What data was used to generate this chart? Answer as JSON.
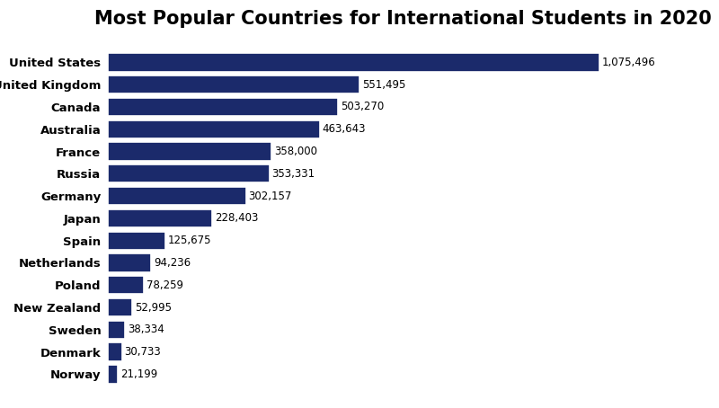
{
  "title": "Most Popular Countries for International Students in 2020",
  "countries": [
    "United States",
    "United Kingdom",
    "Canada",
    "Australia",
    "France",
    "Russia",
    "Germany",
    "Japan",
    "Spain",
    "Netherlands",
    "Poland",
    "New Zealand",
    "Sweden",
    "Denmark",
    "Norway"
  ],
  "values": [
    1075496,
    551495,
    503270,
    463643,
    358000,
    353331,
    302157,
    228403,
    125675,
    94236,
    78259,
    52995,
    38334,
    30733,
    21199
  ],
  "labels": [
    "1,075,496",
    "551,495",
    "503,270",
    "463,643",
    "358,000",
    "353,331",
    "302,157",
    "228,403",
    "125,675",
    "94,236",
    "78,259",
    "52,995",
    "38,334",
    "30,733",
    "21,199"
  ],
  "bar_color": "#1b2a6b",
  "background_color": "#ffffff",
  "title_fontsize": 15,
  "label_fontsize": 8.5,
  "country_fontsize": 9.5
}
